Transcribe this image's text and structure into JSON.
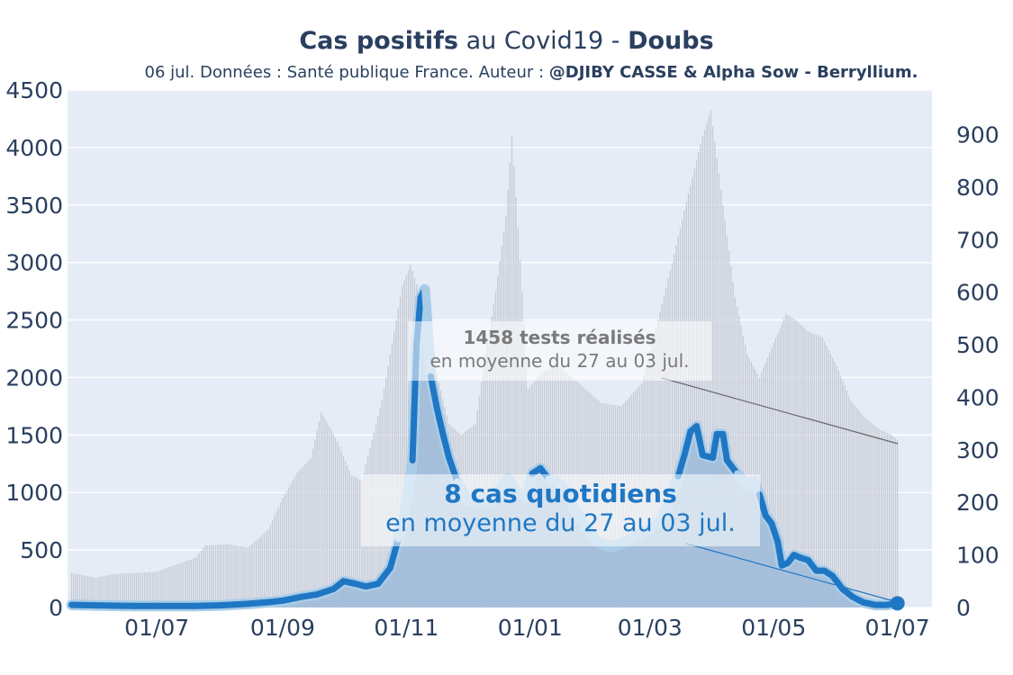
{
  "header": {
    "title_bold_1": "Cas positifs",
    "title_regular": " au Covid19 - ",
    "title_bold_2": "Doubs",
    "subtitle_regular": "06 jul. Données : Santé publique France. Auteur : ",
    "subtitle_bold": "@DJIBY CASSE & Alpha Sow - Berryllium."
  },
  "annotations": {
    "tests_line1": "1458 tests réalisés",
    "tests_line2": "en moyenne du 27 au 03 jul.",
    "cases_line1": "8 cas quotidiens",
    "cases_line2": "en moyenne du 27 au 03 jul."
  },
  "colors": {
    "plot_bg": "#e5ecf6",
    "grid": "#ffffff",
    "tests_bars": "#c8ccd6",
    "cases_fill": "#9dbbd9",
    "cases_line": "#1f77c4",
    "cases_light_band": "#a9cde8",
    "axis_text": "#2a3f5f"
  },
  "chart_data": {
    "type": "line",
    "x_ticks": [
      "01/07",
      "01/09",
      "01/11",
      "01/01",
      "01/03",
      "01/05",
      "01/07"
    ],
    "y_left": {
      "ticks": [
        0,
        500,
        1000,
        1500,
        2000,
        2500,
        3000,
        3500,
        4000,
        4500
      ],
      "range": [
        0,
        4500
      ]
    },
    "y_right": {
      "ticks": [
        0,
        100,
        200,
        300,
        400,
        500,
        600,
        700,
        800,
        900
      ],
      "range": [
        0,
        985
      ]
    },
    "series": [
      {
        "axis": "left",
        "kind": "bar",
        "points": [
          [
            "2020-05-20",
            300
          ],
          [
            "2020-06-01",
            260
          ],
          [
            "2020-06-10",
            290
          ],
          [
            "2020-06-20",
            300
          ],
          [
            "2020-07-01",
            310
          ],
          [
            "2020-07-10",
            370
          ],
          [
            "2020-07-20",
            430
          ],
          [
            "2020-07-25",
            540
          ],
          [
            "2020-08-05",
            550
          ],
          [
            "2020-08-15",
            520
          ],
          [
            "2020-08-25",
            680
          ],
          [
            "2020-09-01",
            950
          ],
          [
            "2020-09-08",
            1170
          ],
          [
            "2020-09-15",
            1300
          ],
          [
            "2020-09-20",
            1700
          ],
          [
            "2020-09-27",
            1480
          ],
          [
            "2020-10-05",
            1150
          ],
          [
            "2020-10-10",
            1100
          ],
          [
            "2020-10-20",
            1800
          ],
          [
            "2020-10-25",
            2300
          ],
          [
            "2020-10-30",
            2800
          ],
          [
            "2020-11-03",
            2980
          ],
          [
            "2020-11-08",
            2700
          ],
          [
            "2020-11-15",
            2100
          ],
          [
            "2020-11-22",
            1600
          ],
          [
            "2020-11-28",
            1500
          ],
          [
            "2020-12-05",
            1600
          ],
          [
            "2020-12-10",
            2200
          ],
          [
            "2020-12-15",
            2750
          ],
          [
            "2020-12-20",
            3400
          ],
          [
            "2020-12-23",
            4100
          ],
          [
            "2020-12-26",
            3300
          ],
          [
            "2020-12-31",
            1900
          ],
          [
            "2021-01-07",
            2050
          ],
          [
            "2021-01-15",
            2100
          ],
          [
            "2021-01-25",
            1950
          ],
          [
            "2021-02-05",
            1780
          ],
          [
            "2021-02-15",
            1750
          ],
          [
            "2021-02-25",
            1950
          ],
          [
            "2021-03-05",
            2500
          ],
          [
            "2021-03-12",
            3000
          ],
          [
            "2021-03-20",
            3600
          ],
          [
            "2021-03-27",
            4100
          ],
          [
            "2021-03-31",
            4320
          ],
          [
            "2021-04-06",
            3500
          ],
          [
            "2021-04-12",
            2700
          ],
          [
            "2021-04-18",
            2200
          ],
          [
            "2021-04-24",
            2000
          ],
          [
            "2021-05-01",
            2300
          ],
          [
            "2021-05-07",
            2550
          ],
          [
            "2021-05-12",
            2500
          ],
          [
            "2021-05-18",
            2400
          ],
          [
            "2021-05-25",
            2350
          ],
          [
            "2021-06-01",
            2100
          ],
          [
            "2021-06-08",
            1800
          ],
          [
            "2021-06-15",
            1650
          ],
          [
            "2021-06-22",
            1550
          ],
          [
            "2021-06-28",
            1500
          ],
          [
            "2021-07-01",
            1460
          ]
        ]
      },
      {
        "axis": "right",
        "kind": "line",
        "points": [
          [
            "2020-05-20",
            5
          ],
          [
            "2020-06-01",
            4
          ],
          [
            "2020-06-20",
            3
          ],
          [
            "2020-07-01",
            3
          ],
          [
            "2020-07-20",
            3
          ],
          [
            "2020-08-01",
            4
          ],
          [
            "2020-08-15",
            7
          ],
          [
            "2020-08-25",
            10
          ],
          [
            "2020-09-01",
            13
          ],
          [
            "2020-09-10",
            20
          ],
          [
            "2020-09-18",
            25
          ],
          [
            "2020-09-26",
            35
          ],
          [
            "2020-10-01",
            50
          ],
          [
            "2020-10-06",
            46
          ],
          [
            "2020-10-12",
            40
          ],
          [
            "2020-10-18",
            45
          ],
          [
            "2020-10-24",
            75
          ],
          [
            "2020-10-28",
            130
          ],
          [
            "2020-10-31",
            170
          ],
          [
            "2020-11-04",
            280
          ],
          [
            "2020-11-06",
            500
          ],
          [
            "2020-11-08",
            590
          ],
          [
            "2020-11-10",
            605
          ],
          [
            "2020-11-13",
            440
          ],
          [
            "2020-11-16",
            380
          ],
          [
            "2020-11-19",
            330
          ],
          [
            "2020-11-22",
            285
          ],
          [
            "2020-11-26",
            240
          ],
          [
            "2020-12-01",
            205
          ],
          [
            "2020-12-05",
            200
          ],
          [
            "2020-12-09",
            210
          ],
          [
            "2020-12-13",
            200
          ],
          [
            "2020-12-18",
            230
          ],
          [
            "2020-12-21",
            245
          ],
          [
            "2020-12-25",
            220
          ],
          [
            "2020-12-30",
            210
          ],
          [
            "2021-01-02",
            255
          ],
          [
            "2021-01-06",
            265
          ],
          [
            "2021-01-10",
            245
          ],
          [
            "2021-01-14",
            240
          ],
          [
            "2021-01-18",
            225
          ],
          [
            "2021-01-24",
            180
          ],
          [
            "2021-01-29",
            150
          ],
          [
            "2021-02-03",
            125
          ],
          [
            "2021-02-10",
            115
          ],
          [
            "2021-02-17",
            125
          ],
          [
            "2021-02-24",
            140
          ],
          [
            "2021-03-01",
            150
          ],
          [
            "2021-03-06",
            165
          ],
          [
            "2021-03-10",
            195
          ],
          [
            "2021-03-15",
            250
          ],
          [
            "2021-03-18",
            290
          ],
          [
            "2021-03-21",
            335
          ],
          [
            "2021-03-24",
            345
          ],
          [
            "2021-03-27",
            290
          ],
          [
            "2021-04-01",
            285
          ],
          [
            "2021-04-03",
            330
          ],
          [
            "2021-04-06",
            330
          ],
          [
            "2021-04-08",
            280
          ],
          [
            "2021-04-13",
            255
          ],
          [
            "2021-04-18",
            230
          ],
          [
            "2021-04-21",
            240
          ],
          [
            "2021-04-24",
            215
          ],
          [
            "2021-04-27",
            175
          ],
          [
            "2021-04-30",
            160
          ],
          [
            "2021-05-03",
            125
          ],
          [
            "2021-05-05",
            80
          ],
          [
            "2021-05-08",
            85
          ],
          [
            "2021-05-11",
            100
          ],
          [
            "2021-05-14",
            95
          ],
          [
            "2021-05-18",
            90
          ],
          [
            "2021-05-22",
            70
          ],
          [
            "2021-05-26",
            70
          ],
          [
            "2021-05-30",
            60
          ],
          [
            "2021-06-04",
            35
          ],
          [
            "2021-06-09",
            20
          ],
          [
            "2021-06-14",
            10
          ],
          [
            "2021-06-20",
            5
          ],
          [
            "2021-06-26",
            5
          ],
          [
            "2021-07-01",
            8
          ]
        ]
      }
    ]
  }
}
